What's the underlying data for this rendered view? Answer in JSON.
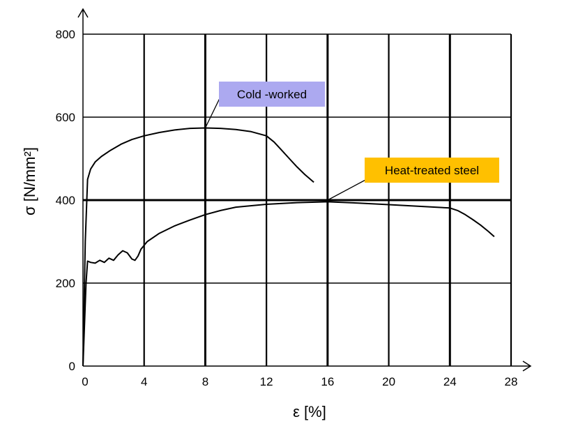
{
  "chart_data": {
    "type": "line",
    "title": "",
    "xlabel": "ε [%]",
    "ylabel": "σ [N/mm²]",
    "xlim": [
      0,
      28
    ],
    "ylim": [
      0,
      800
    ],
    "xticks": [
      0,
      4,
      8,
      12,
      16,
      20,
      24,
      28
    ],
    "yticks": [
      0,
      200,
      400,
      600,
      800
    ],
    "xtick_labels": [
      "0",
      "4",
      "8",
      "12",
      "16",
      "20",
      "24",
      "28"
    ],
    "ytick_labels": [
      "0",
      "200",
      "400",
      "600",
      "800"
    ],
    "grid": true,
    "series": [
      {
        "name": "Cold -worked",
        "label_color": "#ACA9F0",
        "x": [
          0,
          0.15,
          0.3,
          0.5,
          0.8,
          1.2,
          1.8,
          2.5,
          3.2,
          4,
          5,
          6,
          7,
          8,
          9,
          10,
          11,
          12,
          12.5,
          13,
          13.5,
          14,
          14.5,
          15.1
        ],
        "y": [
          0,
          300,
          450,
          475,
          492,
          505,
          520,
          535,
          546,
          555,
          563,
          569,
          573,
          574,
          573,
          570,
          565,
          555,
          540,
          520,
          500,
          480,
          462,
          443
        ]
      },
      {
        "name": "Heat-treated steel",
        "label_color": "#FFC000",
        "x": [
          0,
          0.2,
          0.3,
          0.5,
          0.8,
          1.1,
          1.4,
          1.7,
          2.0,
          2.3,
          2.6,
          2.9,
          3.2,
          3.4,
          3.6,
          3.8,
          4.2,
          5,
          6,
          7,
          8,
          9,
          10,
          12,
          14,
          16,
          18,
          20,
          22,
          24,
          24.5,
          25,
          25.5,
          26,
          26.5,
          26.9
        ],
        "y": [
          0,
          200,
          253,
          250,
          248,
          255,
          250,
          260,
          255,
          268,
          278,
          273,
          258,
          255,
          265,
          282,
          300,
          320,
          338,
          352,
          365,
          375,
          383,
          390,
          394,
          396,
          393,
          389,
          385,
          381,
          375,
          365,
          353,
          340,
          325,
          312
        ]
      }
    ],
    "annotations": [
      {
        "text": "Cold -worked",
        "points_to": [
          8,
          574
        ]
      },
      {
        "text": "Heat-treated steel",
        "points_to": [
          16,
          400
        ]
      }
    ]
  }
}
